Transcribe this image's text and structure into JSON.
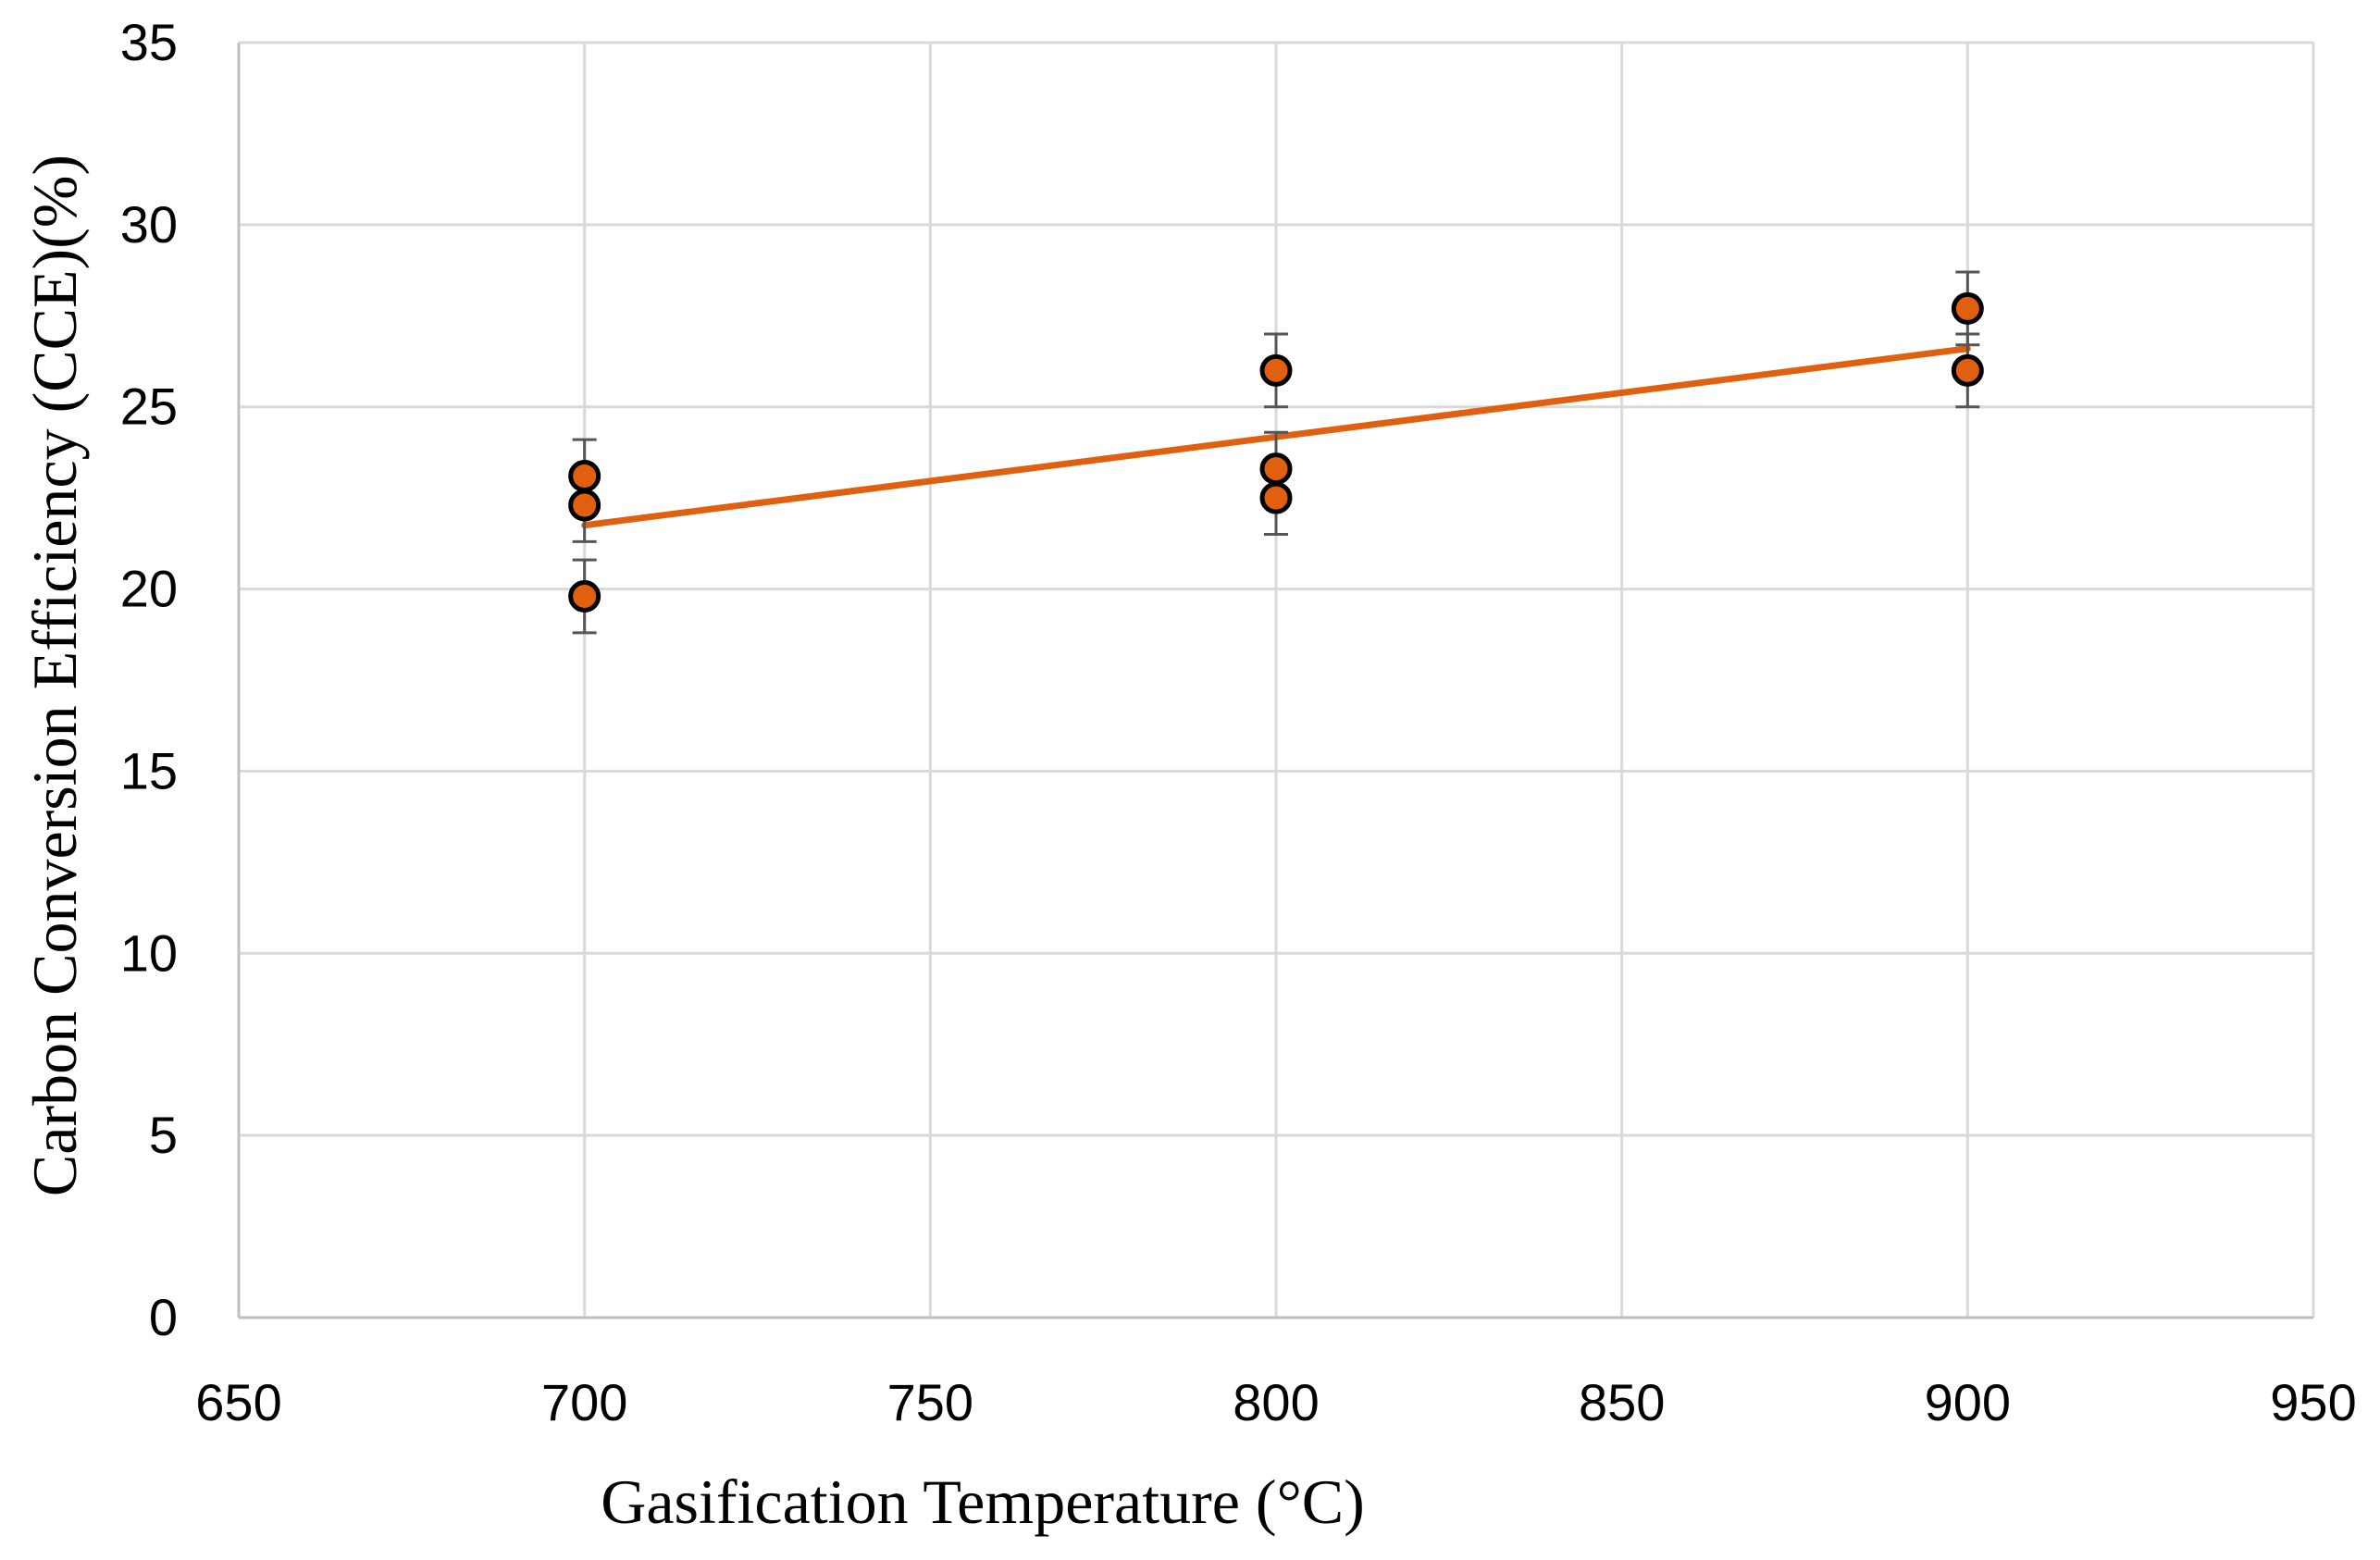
{
  "chart_data": {
    "type": "scatter",
    "title": "",
    "xlabel": "Gasification Temperature (°C)",
    "ylabel": "Carbon Conversion Efficiency (CCE)(%)",
    "xlim": [
      650,
      950
    ],
    "ylim": [
      0,
      35
    ],
    "x_ticks": [
      "650",
      "700",
      "750",
      "800",
      "850",
      "900",
      "950"
    ],
    "y_ticks": [
      "0",
      "5",
      "10",
      "15",
      "20",
      "25",
      "30",
      "35"
    ],
    "x_tick_values": [
      650,
      700,
      750,
      800,
      850,
      900,
      950
    ],
    "y_tick_values": [
      0,
      5,
      10,
      15,
      20,
      25,
      30,
      35
    ],
    "grid": true,
    "series": [
      {
        "name": "CCE",
        "points": [
          {
            "x": 700,
            "y": 23.1,
            "err": 1.0
          },
          {
            "x": 700,
            "y": 22.3,
            "err": 1.0
          },
          {
            "x": 700,
            "y": 19.8,
            "err": 1.0
          },
          {
            "x": 800,
            "y": 26.0,
            "err": 1.0
          },
          {
            "x": 800,
            "y": 23.3,
            "err": 1.0
          },
          {
            "x": 800,
            "y": 22.5,
            "err": 1.0
          },
          {
            "x": 900,
            "y": 27.7,
            "err": 1.0
          },
          {
            "x": 900,
            "y": 26.0,
            "err": 1.0
          }
        ]
      }
    ],
    "trendline": {
      "type": "linear",
      "x": [
        700,
        900
      ],
      "y": [
        21.75,
        26.6
      ]
    },
    "colors": {
      "marker_fill": "#E06010",
      "marker_edge": "#000000",
      "trendline": "#E06010",
      "grid": "#D9D9D9",
      "axis": "#BFBFBF",
      "error_bar": "#555555"
    }
  }
}
